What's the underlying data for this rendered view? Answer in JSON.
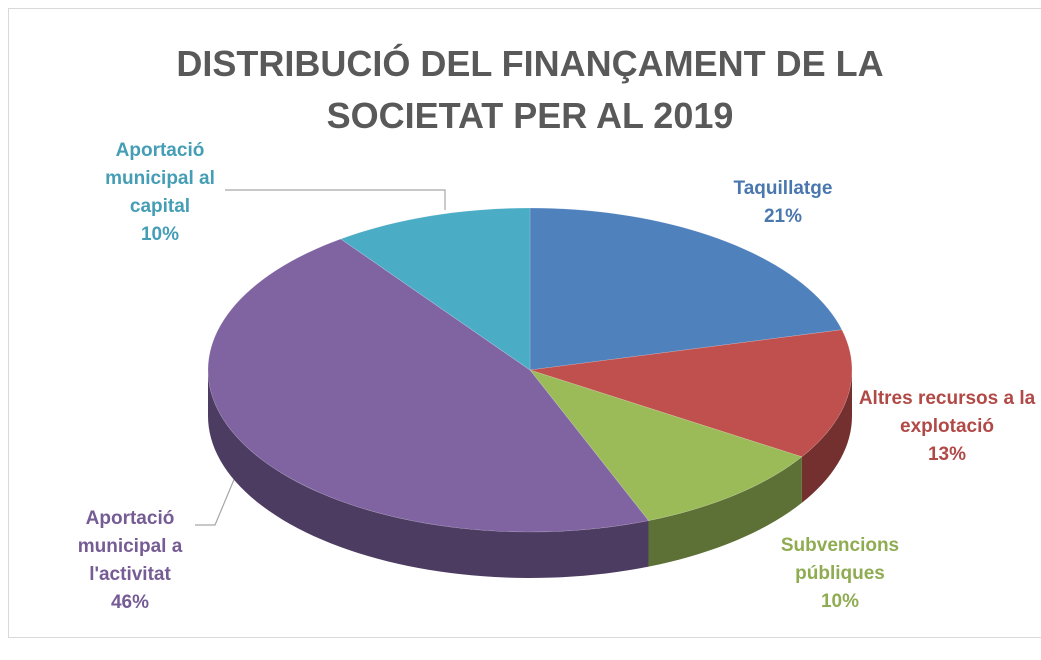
{
  "chart_data": {
    "type": "pie3d",
    "title": "DISTRIBUCIÓ DEL FINANÇAMENT DE LA SOCIETAT PER AL 2019",
    "categories": [
      "Taquillatge",
      "Altres recursos a la explotació",
      "Subvencions públiques",
      "Aportació municipal a l'activitat",
      "Aportació municipal al capital"
    ],
    "values": [
      21,
      13,
      10,
      46,
      10
    ],
    "value_labels": [
      "21%",
      "13%",
      "10%",
      "46%",
      "10%"
    ],
    "colors": [
      "#4f81bd",
      "#c0504d",
      "#9bbb59",
      "#8064a2",
      "#4bacc6"
    ]
  }
}
